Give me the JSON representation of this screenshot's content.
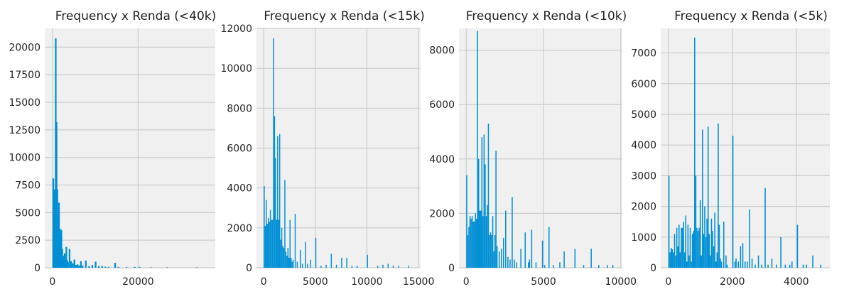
{
  "colors": {
    "bar": "#008fd5",
    "background": "#f0f0f0",
    "grid": "#cbcbcb"
  },
  "chart_data": [
    {
      "type": "bar",
      "title": "Frequency x Renda (<40k)",
      "xlabel": "",
      "ylabel": "",
      "xlim": [
        -1800,
        38000
      ],
      "ylim": [
        0,
        21700
      ],
      "xticks": [
        0,
        20000
      ],
      "yticks": [
        0,
        2500,
        5000,
        7500,
        10000,
        12500,
        15000,
        17500,
        20000
      ],
      "grid": true,
      "bin_width": 380,
      "bins": [
        [
          0,
          8100
        ],
        [
          190,
          7100
        ],
        [
          380,
          7100
        ],
        [
          570,
          20800
        ],
        [
          760,
          13200
        ],
        [
          950,
          7100
        ],
        [
          1140,
          4700
        ],
        [
          1330,
          5900
        ],
        [
          1520,
          3500
        ],
        [
          1710,
          3500
        ],
        [
          1900,
          3400
        ],
        [
          2090,
          1700
        ],
        [
          2280,
          800
        ],
        [
          2470,
          1100
        ],
        [
          2660,
          1300
        ],
        [
          2850,
          800
        ],
        [
          3040,
          1900
        ],
        [
          3230,
          700
        ],
        [
          3420,
          500
        ],
        [
          3800,
          1700
        ],
        [
          4180,
          600
        ],
        [
          4560,
          400
        ],
        [
          4940,
          750
        ],
        [
          5320,
          250
        ],
        [
          5700,
          300
        ],
        [
          6080,
          200
        ],
        [
          6460,
          600
        ],
        [
          6840,
          200
        ],
        [
          7600,
          650
        ],
        [
          8360,
          150
        ],
        [
          9120,
          250
        ],
        [
          9880,
          550
        ],
        [
          10640,
          150
        ],
        [
          11400,
          150
        ],
        [
          12160,
          100
        ],
        [
          12920,
          80
        ],
        [
          14440,
          450
        ],
        [
          15200,
          80
        ],
        [
          17100,
          60
        ],
        [
          19000,
          80
        ],
        [
          20140,
          80
        ],
        [
          22800,
          40
        ],
        [
          26600,
          40
        ],
        [
          33500,
          40
        ]
      ]
    },
    {
      "type": "bar",
      "title": "Frequency x Renda (<15k)",
      "xlabel": "",
      "ylabel": "",
      "xlim": [
        -700,
        15200
      ],
      "ylim": [
        0,
        12000
      ],
      "xticks": [
        0,
        5000,
        10000,
        15000
      ],
      "yticks": [
        0,
        2000,
        4000,
        6000,
        8000,
        10000,
        12000
      ],
      "grid": true,
      "bin_width": 100,
      "bins": [
        [
          0,
          4100
        ],
        [
          100,
          2100
        ],
        [
          200,
          3400
        ],
        [
          300,
          2200
        ],
        [
          400,
          2500
        ],
        [
          500,
          2300
        ],
        [
          600,
          2900
        ],
        [
          700,
          2400
        ],
        [
          800,
          2400
        ],
        [
          900,
          11500
        ],
        [
          1000,
          7600
        ],
        [
          1100,
          5500
        ],
        [
          1200,
          2400
        ],
        [
          1300,
          6600
        ],
        [
          1400,
          2400
        ],
        [
          1500,
          6700
        ],
        [
          1600,
          1400
        ],
        [
          1700,
          2000
        ],
        [
          1800,
          1100
        ],
        [
          1900,
          1000
        ],
        [
          2000,
          4400
        ],
        [
          2100,
          800
        ],
        [
          2200,
          600
        ],
        [
          2300,
          1000
        ],
        [
          2400,
          500
        ],
        [
          2500,
          2400
        ],
        [
          2600,
          500
        ],
        [
          2700,
          300
        ],
        [
          2800,
          400
        ],
        [
          3000,
          2700
        ],
        [
          3200,
          300
        ],
        [
          3500,
          900
        ],
        [
          3700,
          200
        ],
        [
          4000,
          1300
        ],
        [
          4200,
          200
        ],
        [
          4500,
          400
        ],
        [
          5000,
          1500
        ],
        [
          5500,
          100
        ],
        [
          6000,
          150
        ],
        [
          6500,
          700
        ],
        [
          7000,
          150
        ],
        [
          7500,
          500
        ],
        [
          8000,
          500
        ],
        [
          8500,
          100
        ],
        [
          9000,
          100
        ],
        [
          10000,
          650
        ],
        [
          11000,
          100
        ],
        [
          11500,
          150
        ],
        [
          12000,
          200
        ],
        [
          12500,
          100
        ],
        [
          13000,
          100
        ],
        [
          14000,
          100
        ]
      ]
    },
    {
      "type": "bar",
      "title": "Frequency x Renda (<10k)",
      "xlabel": "",
      "ylabel": "",
      "xlim": [
        -470,
        10100
      ],
      "ylim": [
        0,
        8800
      ],
      "xticks": [
        0,
        5000,
        10000
      ],
      "yticks": [
        0,
        2000,
        4000,
        6000,
        8000
      ],
      "grid": true,
      "bin_width": 70,
      "bins": [
        [
          0,
          3400
        ],
        [
          70,
          1200
        ],
        [
          140,
          1500
        ],
        [
          210,
          1900
        ],
        [
          280,
          1800
        ],
        [
          350,
          1900
        ],
        [
          420,
          1700
        ],
        [
          490,
          1700
        ],
        [
          560,
          2000
        ],
        [
          630,
          1800
        ],
        [
          700,
          8700
        ],
        [
          770,
          4000
        ],
        [
          840,
          2100
        ],
        [
          910,
          2100
        ],
        [
          980,
          4800
        ],
        [
          1050,
          1900
        ],
        [
          1120,
          4900
        ],
        [
          1190,
          3800
        ],
        [
          1260,
          1900
        ],
        [
          1330,
          2300
        ],
        [
          1400,
          5300
        ],
        [
          1470,
          1200
        ],
        [
          1540,
          1300
        ],
        [
          1610,
          1200
        ],
        [
          1680,
          1900
        ],
        [
          1750,
          600
        ],
        [
          1820,
          1200
        ],
        [
          1890,
          4300
        ],
        [
          1960,
          800
        ],
        [
          2100,
          600
        ],
        [
          2240,
          700
        ],
        [
          2380,
          1100
        ],
        [
          2520,
          2100
        ],
        [
          2660,
          400
        ],
        [
          2800,
          300
        ],
        [
          2940,
          2600
        ],
        [
          3080,
          300
        ],
        [
          3220,
          200
        ],
        [
          3500,
          700
        ],
        [
          3780,
          1300
        ],
        [
          3990,
          200
        ],
        [
          4060,
          300
        ],
        [
          4200,
          1400
        ],
        [
          4480,
          200
        ],
        [
          4900,
          1000
        ],
        [
          5040,
          100
        ],
        [
          5320,
          1500
        ],
        [
          5600,
          100
        ],
        [
          6020,
          200
        ],
        [
          6300,
          600
        ],
        [
          7000,
          700
        ],
        [
          7560,
          100
        ],
        [
          8050,
          700
        ],
        [
          8540,
          100
        ],
        [
          9100,
          100
        ],
        [
          9450,
          100
        ]
      ]
    },
    {
      "type": "bar",
      "title": "Frequency x Renda (<5k)",
      "xlabel": "",
      "ylabel": "",
      "xlim": [
        -240,
        5050
      ],
      "ylim": [
        0,
        7800
      ],
      "xticks": [
        0,
        2000,
        4000
      ],
      "yticks": [
        0,
        1000,
        2000,
        3000,
        4000,
        5000,
        6000,
        7000
      ],
      "grid": true,
      "bin_width": 35,
      "bins": [
        [
          0,
          3000
        ],
        [
          35,
          500
        ],
        [
          70,
          650
        ],
        [
          105,
          600
        ],
        [
          140,
          500
        ],
        [
          175,
          1100
        ],
        [
          210,
          400
        ],
        [
          245,
          1300
        ],
        [
          280,
          700
        ],
        [
          315,
          1400
        ],
        [
          350,
          500
        ],
        [
          385,
          1300
        ],
        [
          420,
          1300
        ],
        [
          455,
          1500
        ],
        [
          490,
          500
        ],
        [
          525,
          1700
        ],
        [
          560,
          200
        ],
        [
          595,
          1400
        ],
        [
          630,
          400
        ],
        [
          665,
          1300
        ],
        [
          700,
          200
        ],
        [
          735,
          1100
        ],
        [
          770,
          1200
        ],
        [
          805,
          7500
        ],
        [
          840,
          3000
        ],
        [
          875,
          1300
        ],
        [
          910,
          1200
        ],
        [
          945,
          1300
        ],
        [
          980,
          2200
        ],
        [
          1015,
          400
        ],
        [
          1050,
          4500
        ],
        [
          1085,
          1100
        ],
        [
          1120,
          2000
        ],
        [
          1155,
          1000
        ],
        [
          1190,
          1600
        ],
        [
          1225,
          4600
        ],
        [
          1260,
          1100
        ],
        [
          1295,
          400
        ],
        [
          1330,
          1600
        ],
        [
          1365,
          1200
        ],
        [
          1400,
          700
        ],
        [
          1435,
          1800
        ],
        [
          1470,
          200
        ],
        [
          1505,
          500
        ],
        [
          1540,
          4700
        ],
        [
          1575,
          1400
        ],
        [
          1610,
          300
        ],
        [
          1645,
          200
        ],
        [
          1715,
          1500
        ],
        [
          1785,
          400
        ],
        [
          1820,
          100
        ],
        [
          2000,
          4300
        ],
        [
          2065,
          200
        ],
        [
          2100,
          300
        ],
        [
          2170,
          200
        ],
        [
          2240,
          700
        ],
        [
          2310,
          800
        ],
        [
          2380,
          200
        ],
        [
          2450,
          200
        ],
        [
          2520,
          1900
        ],
        [
          2600,
          300
        ],
        [
          2700,
          100
        ],
        [
          2800,
          400
        ],
        [
          2900,
          100
        ],
        [
          3010,
          2600
        ],
        [
          3100,
          100
        ],
        [
          3220,
          300
        ],
        [
          3360,
          100
        ],
        [
          3500,
          1000
        ],
        [
          3640,
          100
        ],
        [
          3780,
          100
        ],
        [
          3850,
          200
        ],
        [
          4020,
          1400
        ],
        [
          4200,
          100
        ],
        [
          4300,
          100
        ],
        [
          4500,
          400
        ],
        [
          4750,
          100
        ]
      ]
    }
  ]
}
